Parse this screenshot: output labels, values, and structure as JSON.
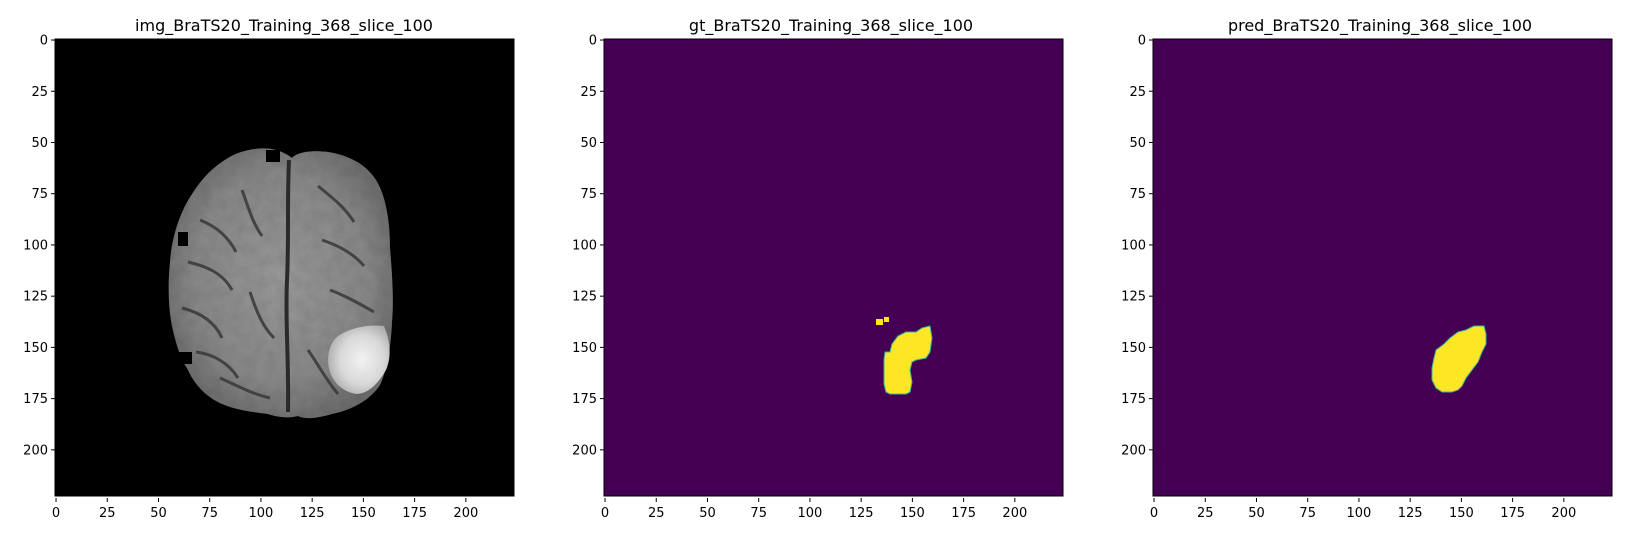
{
  "figure": {
    "panels": [
      {
        "id": "img",
        "title": "img_BraTS20_Training_368_slice_100",
        "kind": "mri",
        "image_size": 224,
        "xticks": [
          "0",
          "25",
          "50",
          "75",
          "100",
          "125",
          "150",
          "175",
          "200"
        ],
        "yticks": [
          "0",
          "25",
          "50",
          "75",
          "100",
          "125",
          "150",
          "175",
          "200"
        ]
      },
      {
        "id": "gt",
        "title": "gt_BraTS20_Training_368_slice_100",
        "kind": "mask",
        "image_size": 224,
        "xticks": [
          "0",
          "25",
          "50",
          "75",
          "100",
          "125",
          "150",
          "175",
          "200"
        ],
        "yticks": [
          "0",
          "25",
          "50",
          "75",
          "100",
          "125",
          "150",
          "175",
          "200"
        ]
      },
      {
        "id": "pred",
        "title": "pred_BraTS20_Training_368_slice_100",
        "kind": "mask",
        "image_size": 224,
        "xticks": [
          "0",
          "25",
          "50",
          "75",
          "100",
          "125",
          "150",
          "175",
          "200"
        ],
        "yticks": [
          "0",
          "25",
          "50",
          "75",
          "100",
          "125",
          "150",
          "175",
          "200"
        ]
      }
    ],
    "colors": {
      "mask_background": "#440154",
      "mask_foreground": "#fde725",
      "mri_background": "#000000"
    }
  }
}
